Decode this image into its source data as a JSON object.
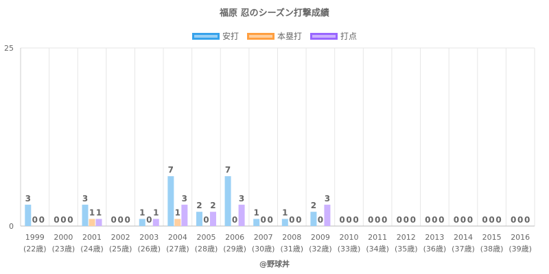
{
  "chart_data": {
    "type": "bar",
    "title": "福原 忍のシーズン打撃成績",
    "categories": [
      "1999",
      "2000",
      "2001",
      "2002",
      "2003",
      "2004",
      "2005",
      "2006",
      "2007",
      "2008",
      "2009",
      "2010",
      "2011",
      "2012",
      "2013",
      "2014",
      "2015",
      "2016"
    ],
    "category_sublabels": [
      "(22歳)",
      "(23歳)",
      "(24歳)",
      "(25歳)",
      "(26歳)",
      "(27歳)",
      "(28歳)",
      "(29歳)",
      "(30歳)",
      "(31歳)",
      "(32歳)",
      "(33歳)",
      "(34歳)",
      "(35歳)",
      "(36歳)",
      "(37歳)",
      "(38歳)",
      "(39歳)"
    ],
    "series": [
      {
        "name": "安打",
        "color": "#36a2eb",
        "fill": "#9ad0f5",
        "values": [
          3,
          0,
          3,
          0,
          1,
          7,
          2,
          7,
          1,
          1,
          2,
          0,
          0,
          0,
          0,
          0,
          0,
          0
        ]
      },
      {
        "name": "本塁打",
        "color": "#ff9f40",
        "fill": "#ffcf9f",
        "values": [
          0,
          0,
          1,
          0,
          0,
          1,
          0,
          0,
          0,
          0,
          0,
          0,
          0,
          0,
          0,
          0,
          0,
          0
        ]
      },
      {
        "name": "打点",
        "color": "#9966ff",
        "fill": "#ccb2ff",
        "values": [
          0,
          0,
          1,
          0,
          1,
          3,
          2,
          3,
          0,
          0,
          3,
          0,
          0,
          0,
          0,
          0,
          0,
          0
        ]
      }
    ],
    "ylim": [
      0,
      25
    ],
    "yticks": [
      "0",
      "25"
    ],
    "xlabel": "",
    "ylabel": "",
    "legend_position": "top",
    "grid": true,
    "data_labels": true
  },
  "credit": "@野球丼"
}
